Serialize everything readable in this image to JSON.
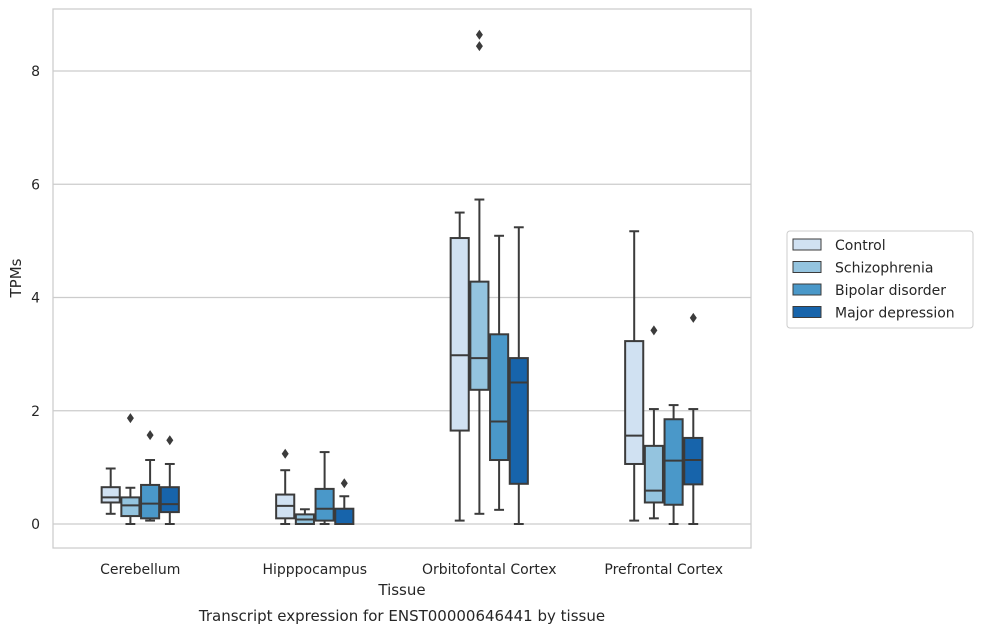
{
  "chart_data": {
    "type": "box",
    "title": "",
    "caption": "Transcript expression for ENST00000646441 by tissue",
    "xlabel": "Tissue",
    "ylabel": "TPMs",
    "ylim": [
      -0.4,
      9.1
    ],
    "yticks": [
      0,
      2,
      4,
      6,
      8
    ],
    "grid": "horizontal",
    "legend_position": "right",
    "categories": [
      "Cerebellum",
      "Hipppocampus",
      "Orbitofontal Cortex",
      "Prefrontal Cortex"
    ],
    "series": [
      {
        "name": "Control",
        "color": "#d0e1f2",
        "boxes": [
          {
            "whislo": 0.18,
            "q1": 0.38,
            "med": 0.47,
            "q3": 0.65,
            "whishi": 0.98,
            "fliers": []
          },
          {
            "whislo": 0.0,
            "q1": 0.1,
            "med": 0.32,
            "q3": 0.52,
            "whishi": 0.95,
            "fliers": [
              1.24
            ]
          },
          {
            "whislo": 0.06,
            "q1": 1.65,
            "med": 2.98,
            "q3": 5.05,
            "whishi": 5.5,
            "fliers": []
          },
          {
            "whislo": 0.06,
            "q1": 1.06,
            "med": 1.56,
            "q3": 3.23,
            "whishi": 5.17,
            "fliers": []
          }
        ]
      },
      {
        "name": "Schizophrenia",
        "color": "#94c4df",
        "boxes": [
          {
            "whislo": 0.0,
            "q1": 0.14,
            "med": 0.33,
            "q3": 0.47,
            "whishi": 0.64,
            "fliers": [
              1.87
            ]
          },
          {
            "whislo": 0.0,
            "q1": 0.0,
            "med": 0.08,
            "q3": 0.17,
            "whishi": 0.26,
            "fliers": []
          },
          {
            "whislo": 0.18,
            "q1": 2.37,
            "med": 2.93,
            "q3": 4.28,
            "whishi": 5.73,
            "fliers": [
              8.44,
              8.64
            ]
          },
          {
            "whislo": 0.1,
            "q1": 0.38,
            "med": 0.59,
            "q3": 1.38,
            "whishi": 2.03,
            "fliers": [
              3.42
            ]
          }
        ]
      },
      {
        "name": "Bipolar disorder",
        "color": "#4a98c9",
        "boxes": [
          {
            "whislo": 0.06,
            "q1": 0.1,
            "med": 0.36,
            "q3": 0.69,
            "whishi": 1.13,
            "fliers": [
              1.57
            ]
          },
          {
            "whislo": 0.0,
            "q1": 0.06,
            "med": 0.27,
            "q3": 0.62,
            "whishi": 1.27,
            "fliers": []
          },
          {
            "whislo": 0.25,
            "q1": 1.13,
            "med": 1.81,
            "q3": 3.35,
            "whishi": 5.09,
            "fliers": []
          },
          {
            "whislo": 0.0,
            "q1": 0.34,
            "med": 1.12,
            "q3": 1.85,
            "whishi": 2.1,
            "fliers": []
          }
        ]
      },
      {
        "name": "Major depression",
        "color": "#1764ab",
        "boxes": [
          {
            "whislo": 0.0,
            "q1": 0.21,
            "med": 0.35,
            "q3": 0.65,
            "whishi": 1.06,
            "fliers": [
              1.48
            ]
          },
          {
            "whislo": 0.0,
            "q1": 0.0,
            "med": 0.0,
            "q3": 0.27,
            "whishi": 0.49,
            "fliers": [
              0.72
            ]
          },
          {
            "whislo": 0.0,
            "q1": 0.71,
            "med": 2.5,
            "q3": 2.93,
            "whishi": 5.24,
            "fliers": []
          },
          {
            "whislo": 0.0,
            "q1": 0.7,
            "med": 1.13,
            "q3": 1.52,
            "whishi": 2.03,
            "fliers": [
              3.64
            ]
          }
        ]
      }
    ]
  }
}
